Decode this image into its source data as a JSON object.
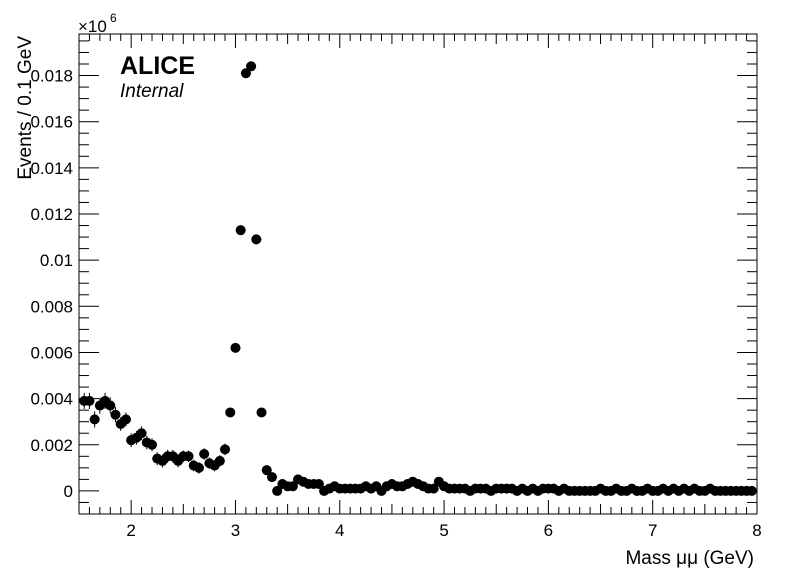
{
  "chart_data": {
    "type": "scatter",
    "experiment_label": "ALICE",
    "status_label": "Internal",
    "xlabel": "Mass μμ (GeV)",
    "ylabel": "Events / 0.1 GeV",
    "y_multiplier_base": "×10",
    "y_multiplier_exponent": "6",
    "xlim": [
      1.5,
      8.0
    ],
    "ylim": [
      -0.001,
      0.0198
    ],
    "x_ticks": [
      {
        "value": 2,
        "label": "2"
      },
      {
        "value": 3,
        "label": "3"
      },
      {
        "value": 4,
        "label": "4"
      },
      {
        "value": 5,
        "label": "5"
      },
      {
        "value": 6,
        "label": "6"
      },
      {
        "value": 7,
        "label": "7"
      },
      {
        "value": 8,
        "label": "8"
      }
    ],
    "y_ticks": [
      {
        "value": 0,
        "label": "0"
      },
      {
        "value": 0.002,
        "label": "0.002"
      },
      {
        "value": 0.004,
        "label": "0.004"
      },
      {
        "value": 0.006,
        "label": "0.006"
      },
      {
        "value": 0.008,
        "label": "0.008"
      },
      {
        "value": 0.01,
        "label": "0.01"
      },
      {
        "value": 0.012,
        "label": "0.012"
      },
      {
        "value": 0.014,
        "label": "0.014"
      },
      {
        "value": 0.016,
        "label": "0.016"
      },
      {
        "value": 0.018,
        "label": "0.018"
      }
    ],
    "series": [
      {
        "marker_color": "#000000",
        "x": [
          1.55,
          1.6,
          1.65,
          1.7,
          1.75,
          1.8,
          1.85,
          1.9,
          1.95,
          2.0,
          2.05,
          2.1,
          2.15,
          2.2,
          2.25,
          2.3,
          2.35,
          2.4,
          2.45,
          2.5,
          2.55,
          2.6,
          2.65,
          2.7,
          2.75,
          2.8,
          2.85,
          2.9,
          2.95,
          3.0,
          3.05,
          3.1,
          3.15,
          3.2,
          3.25,
          3.3,
          3.35,
          3.4,
          3.45,
          3.5,
          3.55,
          3.6,
          3.65,
          3.7,
          3.75,
          3.8,
          3.85,
          3.9,
          3.95,
          4.0,
          4.05,
          4.1,
          4.15,
          4.2,
          4.25,
          4.3,
          4.35,
          4.4,
          4.45,
          4.5,
          4.55,
          4.6,
          4.65,
          4.7,
          4.75,
          4.8,
          4.85,
          4.9,
          4.95,
          5.0,
          5.05,
          5.1,
          5.15,
          5.2,
          5.25,
          5.3,
          5.35,
          5.4,
          5.45,
          5.5,
          5.55,
          5.6,
          5.65,
          5.7,
          5.75,
          5.8,
          5.85,
          5.9,
          5.95,
          6.0,
          6.05,
          6.1,
          6.15,
          6.2,
          6.25,
          6.3,
          6.35,
          6.4,
          6.45,
          6.5,
          6.55,
          6.6,
          6.65,
          6.7,
          6.75,
          6.8,
          6.85,
          6.9,
          6.95,
          7.0,
          7.05,
          7.1,
          7.15,
          7.2,
          7.25,
          7.3,
          7.35,
          7.4,
          7.45,
          7.5,
          7.55,
          7.6,
          7.65,
          7.7,
          7.75,
          7.8,
          7.85,
          7.9,
          7.95
        ],
        "y": [
          0.0039,
          0.0039,
          0.0031,
          0.0037,
          0.0039,
          0.0037,
          0.0033,
          0.0029,
          0.0031,
          0.0022,
          0.0023,
          0.0025,
          0.0021,
          0.002,
          0.0014,
          0.0013,
          0.0015,
          0.0015,
          0.0013,
          0.0015,
          0.0015,
          0.0011,
          0.001,
          0.0016,
          0.0012,
          0.0011,
          0.0013,
          0.0018,
          0.0034,
          0.0062,
          0.0113,
          0.0181,
          0.0184,
          0.0109,
          0.0034,
          0.0009,
          0.0006,
          0.0,
          0.0003,
          0.0002,
          0.0002,
          0.0005,
          0.0004,
          0.0003,
          0.0003,
          0.0003,
          0.0,
          0.0001,
          0.0002,
          0.0001,
          0.0001,
          0.0001,
          0.0001,
          0.0001,
          0.0002,
          0.0001,
          0.0002,
          0.0,
          0.0002,
          0.0003,
          0.0002,
          0.0002,
          0.0003,
          0.0004,
          0.0003,
          0.0002,
          0.0001,
          0.0001,
          0.0004,
          0.0002,
          0.0001,
          0.0001,
          0.0001,
          0.0001,
          0.0,
          0.0001,
          0.0001,
          0.0001,
          0.0,
          0.0001,
          0.0001,
          0.0001,
          0.0001,
          0.0,
          0.0001,
          0.0,
          0.0001,
          0.0,
          0.0001,
          0.0001,
          0.0001,
          0.0,
          0.0001,
          0.0,
          0.0,
          0.0,
          0.0,
          0.0,
          0.0,
          0.0001,
          0.0,
          0.0,
          0.0001,
          0.0,
          0.0,
          0.0001,
          0.0,
          0.0,
          0.0001,
          0.0,
          0.0,
          0.0001,
          0.0,
          0.0001,
          0.0,
          0.0001,
          0.0,
          0.0001,
          0.0,
          0.0,
          0.0001,
          0.0,
          0.0,
          0.0,
          0.0,
          0.0,
          0.0,
          0.0,
          0.0
        ],
        "y_err": [
          0.00035,
          0.00035,
          0.00035,
          0.00035,
          0.00035,
          0.00035,
          0.00033,
          0.0003,
          0.0003,
          0.0003,
          0.0003,
          0.0003,
          0.0003,
          0.00028,
          0.00028,
          0.00028,
          0.00028,
          0.00028,
          0.00028,
          0.00025,
          0.00025,
          0.00025,
          0.00025,
          0.00025,
          0.00025,
          0.00025,
          0.00025,
          0.00025,
          0.0002,
          0.0002,
          0.0002,
          0.0002,
          0.0002,
          0.0002,
          0.0002,
          0.0002,
          0.0002,
          0.0002,
          0.0002,
          0.00018,
          0.00018,
          0.00018,
          0.00018,
          0.00018,
          0.00015,
          0.00015,
          0.00015,
          0.00015,
          0.00015,
          0.00015,
          0.00012,
          0.00012,
          0.00012,
          0.00012,
          0.00012,
          0.00012,
          0.00012,
          0.00012,
          0.00012,
          0.00012,
          0.0001,
          0.0001,
          0.0001,
          0.0001,
          0.0001,
          0.0001,
          0.0001,
          0.0001,
          0.0001,
          0.0001,
          0.0001,
          0.0001,
          0.0001,
          0.0001,
          0.0001,
          8e-05,
          8e-05,
          8e-05,
          8e-05,
          8e-05,
          8e-05,
          8e-05,
          8e-05,
          8e-05,
          8e-05,
          8e-05,
          8e-05,
          8e-05,
          8e-05,
          8e-05,
          6e-05,
          6e-05,
          6e-05,
          6e-05,
          6e-05,
          6e-05,
          6e-05,
          6e-05,
          6e-05,
          6e-05,
          6e-05,
          6e-05,
          6e-05,
          6e-05,
          6e-05,
          6e-05,
          6e-05,
          6e-05,
          6e-05,
          6e-05,
          5e-05,
          5e-05,
          5e-05,
          5e-05,
          5e-05,
          5e-05,
          5e-05,
          5e-05,
          5e-05,
          5e-05,
          5e-05,
          5e-05,
          5e-05,
          5e-05,
          5e-05,
          5e-05,
          5e-05,
          5e-05,
          5e-05
        ]
      }
    ]
  }
}
